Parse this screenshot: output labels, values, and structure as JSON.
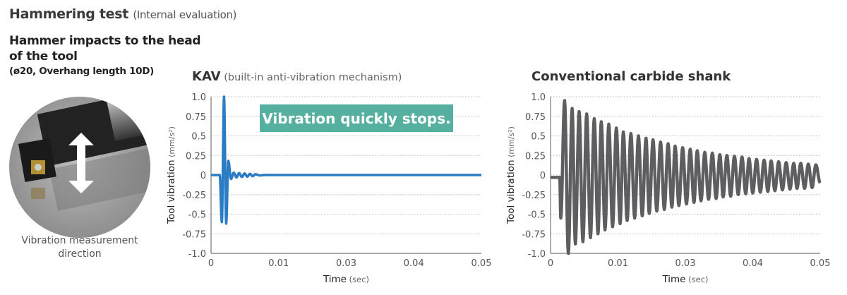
{
  "header": {
    "title": "Hammering test",
    "subtitle": "(Internal evaluation)"
  },
  "setup": {
    "heading_line1": "Hammer impacts to the head",
    "heading_line2": "of the tool",
    "spec": "(ø20, Overhang length 10D)",
    "caption_line1": "Vibration measurement",
    "caption_line2": "direction",
    "icon": "double-arrow-vertical-icon"
  },
  "colors": {
    "kav": "#2a7cc4",
    "conventional": "#5e5e60",
    "callout": "#55b0a0",
    "grid": "#bbbbbb"
  },
  "chart_data": [
    {
      "type": "line",
      "title": "KAV",
      "subtitle": "(built-in anti-vibration mechanism)",
      "callout": "Vibration quickly stops.",
      "ylabel": "Tool vibration",
      "ylabel_unit": "(mm/s²)",
      "xlabel": "Time",
      "xlabel_unit": "(sec)",
      "xlim": [
        0,
        0.05
      ],
      "ylim": [
        -1.0,
        1.0
      ],
      "x_ticks": [
        "0",
        "0.01",
        "0.03",
        "0.04",
        "0.05"
      ],
      "y_ticks": [
        "1.0",
        "0.75",
        "0.5",
        "0.25",
        "0",
        "-0.25",
        "-0.5",
        "-0.75",
        "-1.0"
      ],
      "grid": "horizontal-dotted",
      "x": [
        0,
        0.0016,
        0.002,
        0.0024,
        0.0028,
        0.0032,
        0.0037,
        0.0042,
        0.0047,
        0.0052,
        0.0057,
        0.0062,
        0.0067,
        0.0072,
        0.0077,
        0.0082,
        0.009,
        0.01,
        0.05
      ],
      "y": [
        0,
        0,
        -0.6,
        1.0,
        -0.62,
        0.18,
        -0.05,
        0.03,
        -0.03,
        0.025,
        -0.025,
        0.02,
        -0.02,
        0.015,
        -0.015,
        0.01,
        -0.005,
        0,
        0
      ]
    },
    {
      "type": "line",
      "title": "Conventional carbide shank",
      "ylabel": "Tool vibration",
      "ylabel_unit": "(mm/s²)",
      "xlabel": "Time",
      "xlabel_unit": "(sec)",
      "xlim": [
        0,
        0.05
      ],
      "ylim": [
        -1.0,
        1.0
      ],
      "x_ticks": [
        "0",
        "0.01",
        "0.03",
        "0.04",
        "0.05"
      ],
      "y_ticks": [
        "1.0",
        "0.75",
        "0.5",
        "0.25",
        "0",
        "-0.25",
        "-0.5",
        "-0.75",
        "-1.0"
      ],
      "grid": "horizontal-dotted",
      "x": [
        0,
        0.0017,
        0.0019,
        0.0026,
        0.0033,
        0.004,
        0.0046,
        0.0053,
        0.006,
        0.0067,
        0.0074,
        0.0081,
        0.0088,
        0.0094,
        0.0101,
        0.0108,
        0.0115,
        0.0122,
        0.0129,
        0.0135,
        0.0142,
        0.0149,
        0.0156,
        0.0163,
        0.017,
        0.0177,
        0.0183,
        0.019,
        0.0197,
        0.0204,
        0.0211,
        0.0218,
        0.0225,
        0.0231,
        0.0238,
        0.0245,
        0.0252,
        0.0259,
        0.0266,
        0.0272,
        0.0279,
        0.0286,
        0.0293,
        0.03,
        0.0307,
        0.0314,
        0.032,
        0.0327,
        0.0334,
        0.0341,
        0.0348,
        0.0355,
        0.0362,
        0.0368,
        0.0375,
        0.0382,
        0.0389,
        0.0396,
        0.0403,
        0.0409,
        0.0416,
        0.0423,
        0.043,
        0.0437,
        0.0444,
        0.0451,
        0.0457,
        0.0464,
        0.0471,
        0.0478,
        0.0485,
        0.0492,
        0.05
      ],
      "y": [
        -0.03,
        -0.03,
        -0.55,
        0.95,
        -1.0,
        0.85,
        -0.88,
        0.81,
        -0.85,
        0.78,
        -0.8,
        0.72,
        -0.75,
        0.68,
        -0.7,
        0.65,
        -0.66,
        0.6,
        -0.62,
        0.55,
        -0.58,
        0.53,
        -0.55,
        0.5,
        -0.52,
        0.47,
        -0.49,
        0.45,
        -0.46,
        0.42,
        -0.44,
        0.4,
        -0.41,
        0.37,
        -0.39,
        0.35,
        -0.37,
        0.33,
        -0.35,
        0.31,
        -0.33,
        0.29,
        -0.31,
        0.28,
        -0.3,
        0.26,
        -0.28,
        0.25,
        -0.27,
        0.24,
        -0.25,
        0.23,
        -0.24,
        0.21,
        -0.23,
        0.2,
        -0.22,
        0.19,
        -0.21,
        0.18,
        -0.2,
        0.17,
        -0.19,
        0.16,
        -0.18,
        0.15,
        -0.17,
        0.15,
        -0.17,
        0.14,
        -0.16,
        0.13,
        -0.1
      ]
    }
  ]
}
